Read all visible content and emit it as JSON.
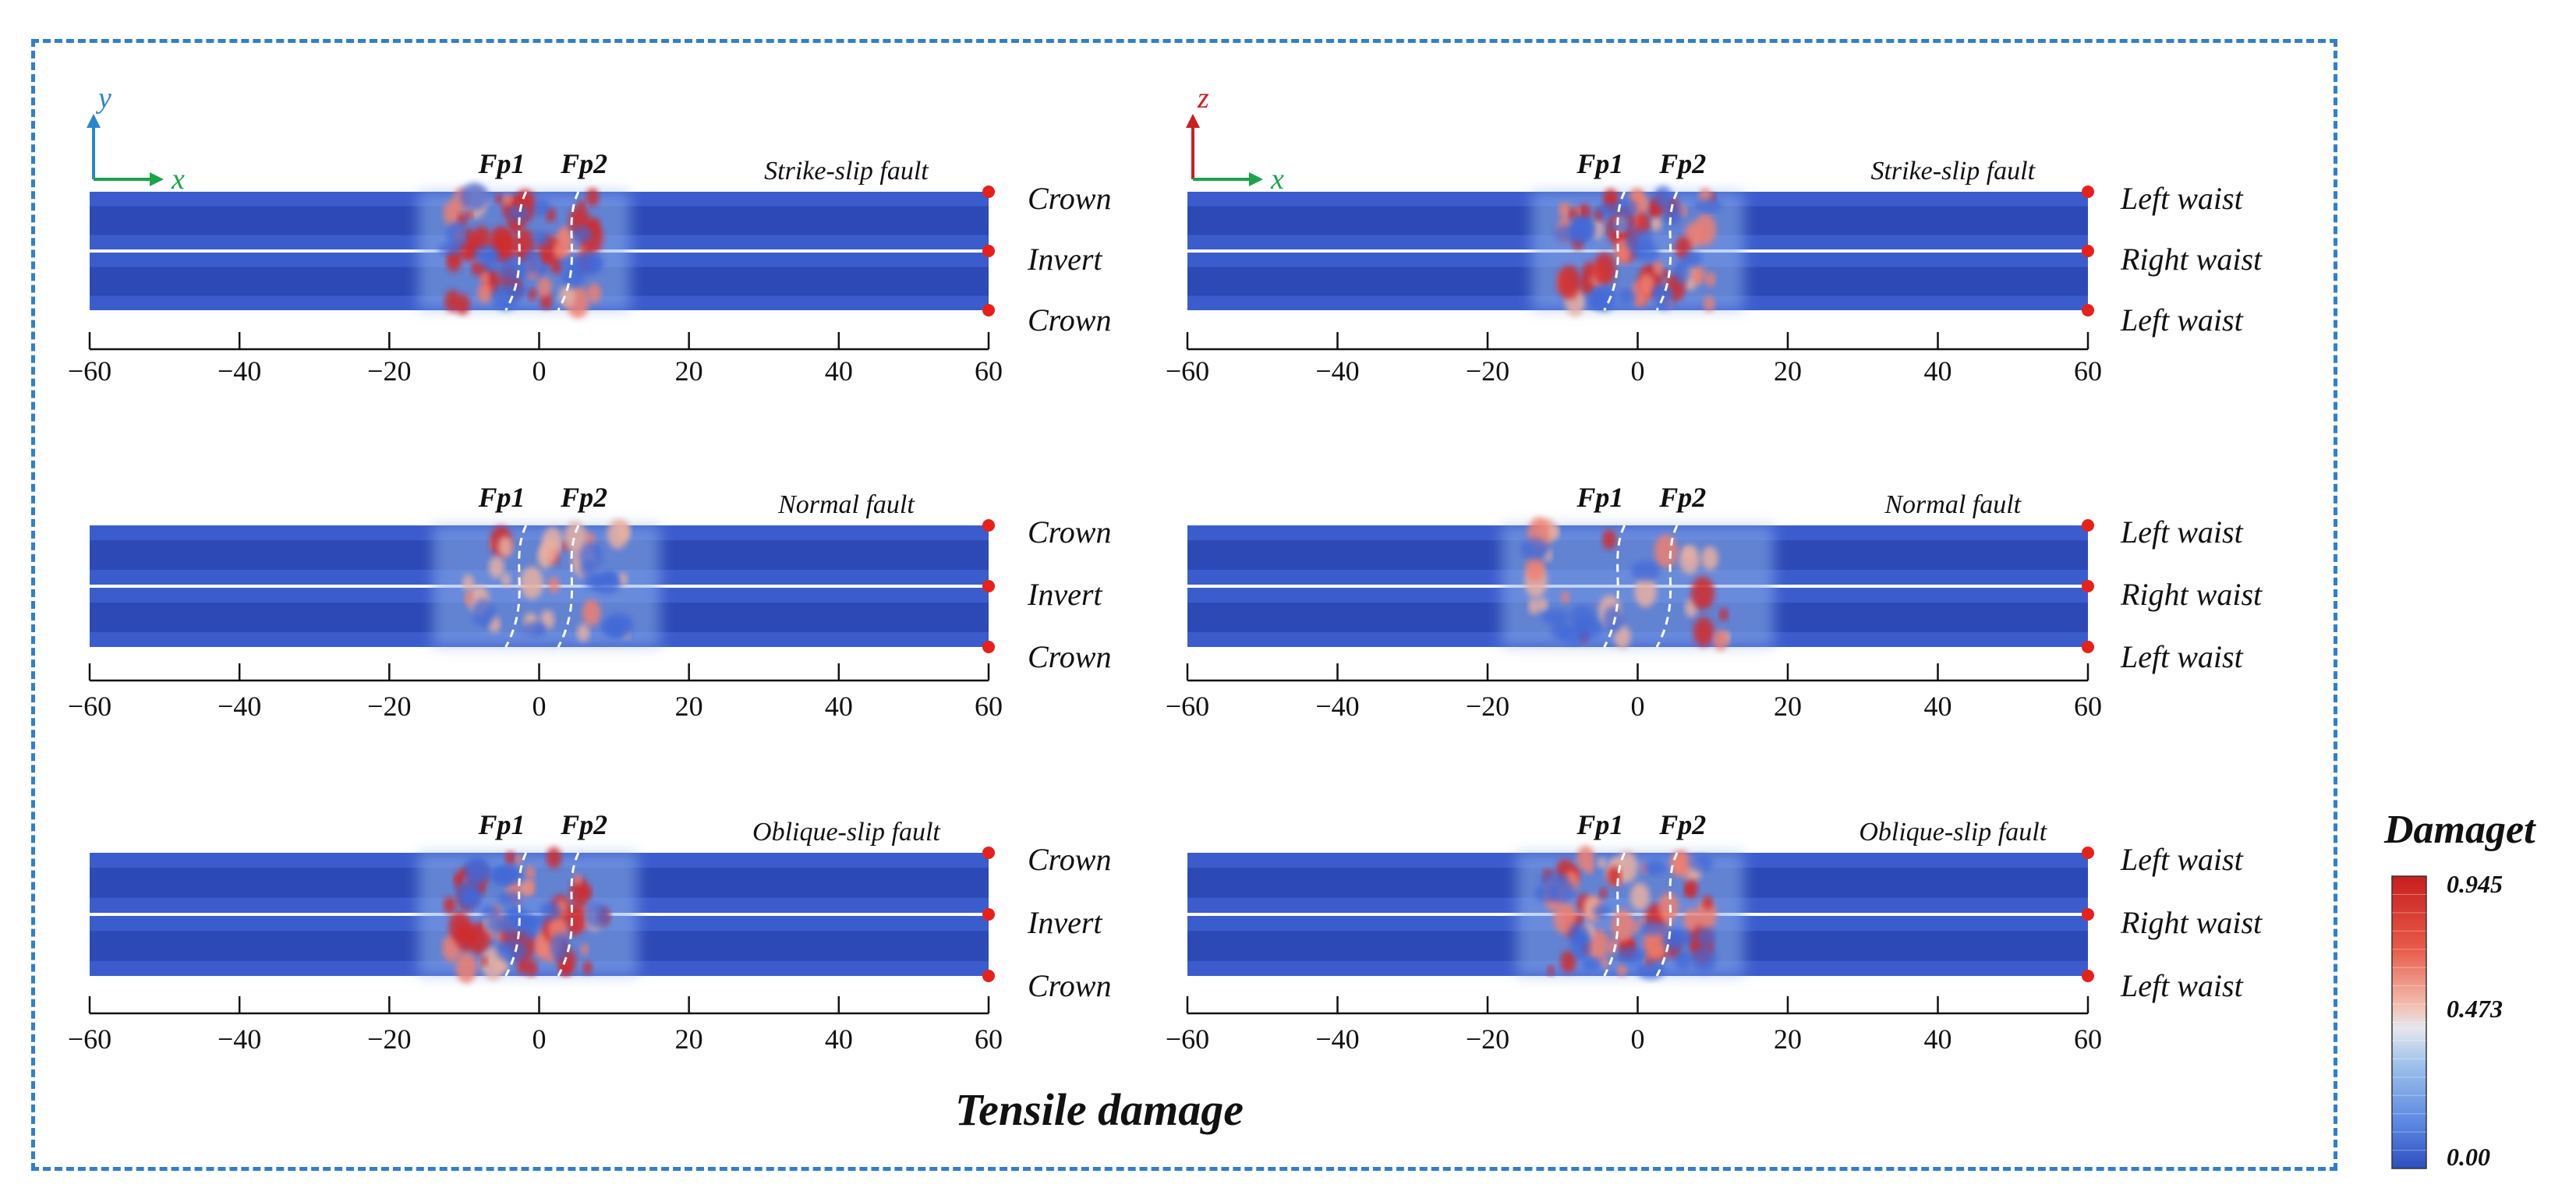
{
  "colors": {
    "frame": "#2f7fd0",
    "tunnel_dark": "#2740a8",
    "tunnel_mid": "#3556c8",
    "tunnel_light": "#3f63d2",
    "damage_high": "#d22a2a",
    "damage_mid": "#e8b0a0",
    "axis_y": "#2a86cc",
    "axis_z": "#cc1f1f",
    "axis_x": "#1aa44a",
    "marker": "#e8201a"
  },
  "title": "Tensile damage",
  "colorbar": {
    "label": "Damaget",
    "ticks": [
      "0.945",
      "0.473",
      "0.00"
    ],
    "tick_values": [
      0.945,
      0.473,
      0.0
    ],
    "range": [
      0.0,
      0.945
    ]
  },
  "x_axis": {
    "ticks": [
      "−60",
      "−40",
      "−20",
      "0",
      "20",
      "40",
      "60"
    ],
    "tick_values": [
      -60,
      -40,
      -20,
      0,
      20,
      40,
      60
    ],
    "range": [
      -60,
      60
    ]
  },
  "axes_glyphs": {
    "left": {
      "vertical": "y",
      "horizontal": "x"
    },
    "right": {
      "vertical": "z",
      "horizontal": "x"
    }
  },
  "fault_labels": [
    "Fp1",
    "Fp2"
  ],
  "panels": [
    {
      "id": "ss-top",
      "fault": "Strike-slip fault",
      "view": "top",
      "positions": [
        "Crown",
        "Invert",
        "Crown"
      ],
      "damage_extent": [
        -12,
        8
      ],
      "damage_intensity": 0.9
    },
    {
      "id": "ss-side",
      "fault": "Strike-slip fault",
      "view": "side",
      "positions": [
        "Left waist",
        "Right waist",
        "Left waist"
      ],
      "damage_extent": [
        -10,
        10
      ],
      "damage_intensity": 0.9
    },
    {
      "id": "nf-top",
      "fault": "Normal fault",
      "view": "top",
      "positions": [
        "Crown",
        "Invert",
        "Crown"
      ],
      "damage_extent": [
        -10,
        12
      ],
      "damage_intensity": 0.45
    },
    {
      "id": "nf-side",
      "fault": "Normal fault",
      "view": "side",
      "positions": [
        "Left waist",
        "Right waist",
        "Left waist"
      ],
      "damage_extent": [
        -14,
        14
      ],
      "damage_intensity": 0.4
    },
    {
      "id": "os-top",
      "fault": "Oblique-slip fault",
      "view": "top",
      "positions": [
        "Crown",
        "Invert",
        "Crown"
      ],
      "damage_extent": [
        -12,
        9
      ],
      "damage_intensity": 0.9
    },
    {
      "id": "os-side",
      "fault": "Oblique-slip fault",
      "view": "side",
      "positions": [
        "Left waist",
        "Right waist",
        "Left waist"
      ],
      "damage_extent": [
        -12,
        10
      ],
      "damage_intensity": 0.9
    }
  ]
}
